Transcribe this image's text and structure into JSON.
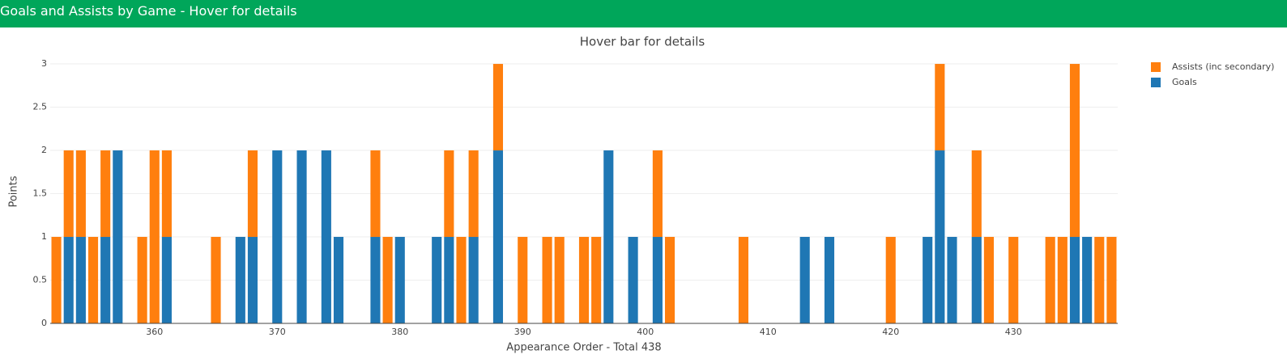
{
  "header": {
    "title": "Goals and Assists by Game - Hover for details"
  },
  "chart_data": {
    "type": "stacked-bar",
    "title": "Hover bar for details",
    "x_label": "Appearance Order - Total 438",
    "y_label": "Points",
    "x": [
      352,
      353,
      354,
      355,
      356,
      357,
      359,
      360,
      361,
      365,
      367,
      368,
      370,
      372,
      374,
      375,
      378,
      379,
      380,
      383,
      384,
      385,
      386,
      388,
      390,
      392,
      393,
      395,
      396,
      397,
      399,
      401,
      402,
      408,
      413,
      415,
      420,
      423,
      424,
      425,
      427,
      428,
      430,
      433,
      434,
      435,
      436,
      437,
      438
    ],
    "series": [
      {
        "name": "Goals",
        "color": "#1f77b4",
        "values": [
          0,
          1,
          1,
          0,
          1,
          2,
          0,
          0,
          1,
          0,
          1,
          1,
          2,
          2,
          2,
          1,
          1,
          0,
          1,
          1,
          1,
          0,
          1,
          2,
          0,
          0,
          0,
          0,
          0,
          2,
          1,
          1,
          0,
          0,
          1,
          1,
          0,
          1,
          2,
          1,
          1,
          0,
          0,
          0,
          0,
          1,
          1,
          0,
          0
        ]
      },
      {
        "name": "Assists (inc secondary)",
        "color": "#ff7f0e",
        "values": [
          1,
          1,
          1,
          1,
          1,
          0,
          1,
          2,
          1,
          1,
          0,
          1,
          0,
          0,
          0,
          0,
          1,
          1,
          0,
          0,
          1,
          1,
          1,
          1,
          1,
          1,
          1,
          1,
          1,
          0,
          0,
          1,
          1,
          1,
          0,
          0,
          1,
          0,
          1,
          0,
          1,
          1,
          1,
          1,
          1,
          2,
          0,
          1,
          1
        ]
      }
    ],
    "xlim": [
      351.5,
      438.5
    ],
    "xticks": [
      360,
      370,
      380,
      390,
      400,
      410,
      420,
      430
    ],
    "ylim": [
      0,
      3.15
    ],
    "yticks": [
      0,
      0.5,
      1,
      1.5,
      2,
      2.5,
      3
    ],
    "grid": true
  }
}
